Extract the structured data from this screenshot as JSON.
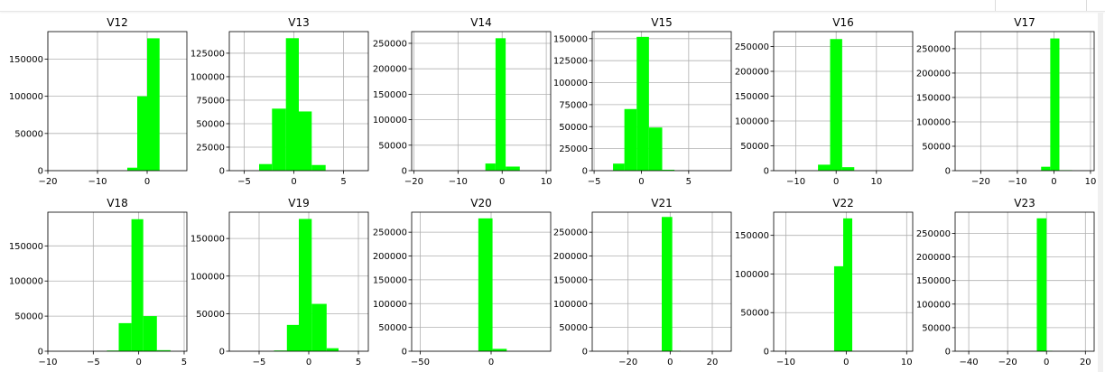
{
  "colors": {
    "bar": "#00ff00",
    "grid": "#b0b0b0",
    "axis": "#000000"
  },
  "chart_data": [
    {
      "type": "bar",
      "title": "V12",
      "xlim": [
        -20,
        8
      ],
      "ylim": [
        0,
        187000
      ],
      "xticks": [
        -20,
        -10,
        0
      ],
      "yticks": [
        0,
        50000,
        100000,
        150000
      ],
      "bins": [
        [
          -4,
          -2,
          4000
        ],
        [
          -2,
          0,
          100000
        ],
        [
          0,
          2.5,
          178000
        ]
      ]
    },
    {
      "type": "bar",
      "title": "V13",
      "xlim": [
        -6.5,
        7.5
      ],
      "ylim": [
        0,
        148000
      ],
      "xticks": [
        -5,
        0,
        5
      ],
      "yticks": [
        0,
        25000,
        50000,
        75000,
        100000,
        125000
      ],
      "bins": [
        [
          -3.5,
          -2.2,
          7000
        ],
        [
          -2.2,
          -0.8,
          66000
        ],
        [
          -0.8,
          0.5,
          141000
        ],
        [
          0.5,
          1.8,
          63000
        ],
        [
          1.8,
          3.2,
          6000
        ]
      ]
    },
    {
      "type": "bar",
      "title": "V14",
      "xlim": [
        -20.5,
        11
      ],
      "ylim": [
        0,
        273000
      ],
      "xticks": [
        -20,
        -10,
        0,
        10
      ],
      "yticks": [
        0,
        50000,
        100000,
        150000,
        200000,
        250000
      ],
      "bins": [
        [
          -3.8,
          -1.5,
          14000
        ],
        [
          -1.5,
          0.8,
          260000
        ],
        [
          0.8,
          4,
          8000
        ]
      ]
    },
    {
      "type": "bar",
      "title": "V15",
      "xlim": [
        -5.2,
        9.5
      ],
      "ylim": [
        0,
        158000
      ],
      "xticks": [
        -5,
        0,
        5
      ],
      "yticks": [
        0,
        25000,
        50000,
        75000,
        100000,
        125000,
        150000
      ],
      "bins": [
        [
          -3,
          -1.8,
          8000
        ],
        [
          -1.8,
          -0.5,
          70000
        ],
        [
          -0.5,
          0.8,
          152000
        ],
        [
          0.8,
          2.2,
          49000
        ],
        [
          2.2,
          3.5,
          1000
        ]
      ]
    },
    {
      "type": "bar",
      "title": "V16",
      "xlim": [
        -15.5,
        19
      ],
      "ylim": [
        0,
        280000
      ],
      "xticks": [
        -10,
        0,
        10
      ],
      "yticks": [
        0,
        50000,
        100000,
        150000,
        200000,
        250000
      ],
      "bins": [
        [
          -4.5,
          -1.5,
          12000
        ],
        [
          -1.5,
          1.5,
          265000
        ],
        [
          1.5,
          4.5,
          7000
        ]
      ]
    },
    {
      "type": "bar",
      "title": "V17",
      "xlim": [
        -27,
        11
      ],
      "ylim": [
        0,
        285000
      ],
      "xticks": [
        -20,
        -10,
        0,
        10
      ],
      "yticks": [
        0,
        50000,
        100000,
        150000,
        200000,
        250000
      ],
      "bins": [
        [
          -3.5,
          -1,
          8000
        ],
        [
          -1,
          1.5,
          271000
        ],
        [
          1.5,
          5,
          1000
        ]
      ]
    },
    {
      "type": "bar",
      "title": "V18",
      "xlim": [
        -10,
        5.3
      ],
      "ylim": [
        0,
        198000
      ],
      "xticks": [
        -10,
        -5,
        0,
        5
      ],
      "yticks": [
        0,
        50000,
        100000,
        150000
      ],
      "bins": [
        [
          -3.5,
          -2.2,
          1000
        ],
        [
          -2.2,
          -0.8,
          40000
        ],
        [
          -0.8,
          0.5,
          188000
        ],
        [
          0.5,
          2,
          50000
        ],
        [
          2,
          3.5,
          1500
        ]
      ]
    },
    {
      "type": "bar",
      "title": "V19",
      "xlim": [
        -8,
        6
      ],
      "ylim": [
        0,
        185000
      ],
      "xticks": [
        -5,
        0,
        5
      ],
      "yticks": [
        0,
        50000,
        100000,
        150000
      ],
      "bins": [
        [
          -3.5,
          -2.2,
          1000
        ],
        [
          -2.2,
          -1,
          35000
        ],
        [
          -1,
          0.3,
          176000
        ],
        [
          0.3,
          1.8,
          63000
        ],
        [
          1.8,
          3,
          4000
        ]
      ]
    },
    {
      "type": "bar",
      "title": "V20",
      "xlim": [
        -56,
        42
      ],
      "ylim": [
        0,
        292000
      ],
      "xticks": [
        -50,
        0
      ],
      "yticks": [
        0,
        50000,
        100000,
        150000,
        200000,
        250000
      ],
      "bins": [
        [
          -9,
          1,
          279000
        ],
        [
          1,
          11,
          5000
        ]
      ]
    },
    {
      "type": "bar",
      "title": "V21",
      "xlim": [
        -37,
        29
      ],
      "ylim": [
        0,
        292000
      ],
      "xticks": [
        -20,
        0,
        20
      ],
      "yticks": [
        0,
        50000,
        100000,
        150000,
        200000,
        250000
      ],
      "bins": [
        [
          -4,
          1,
          282000
        ],
        [
          1,
          5,
          1000
        ]
      ]
    },
    {
      "type": "bar",
      "title": "V22",
      "xlim": [
        -12,
        11
      ],
      "ylim": [
        0,
        180000
      ],
      "xticks": [
        -10,
        0,
        10
      ],
      "yticks": [
        0,
        50000,
        100000,
        150000
      ],
      "bins": [
        [
          -2,
          -0.5,
          110000
        ],
        [
          -0.5,
          1,
          172000
        ]
      ]
    },
    {
      "type": "bar",
      "title": "V23",
      "xlim": [
        -47,
        24.5
      ],
      "ylim": [
        0,
        295000
      ],
      "xticks": [
        -40,
        -20,
        0,
        20
      ],
      "yticks": [
        0,
        50000,
        100000,
        150000,
        200000,
        250000
      ],
      "bins": [
        [
          -5,
          0,
          282000
        ],
        [
          0,
          3,
          1000
        ]
      ]
    }
  ]
}
